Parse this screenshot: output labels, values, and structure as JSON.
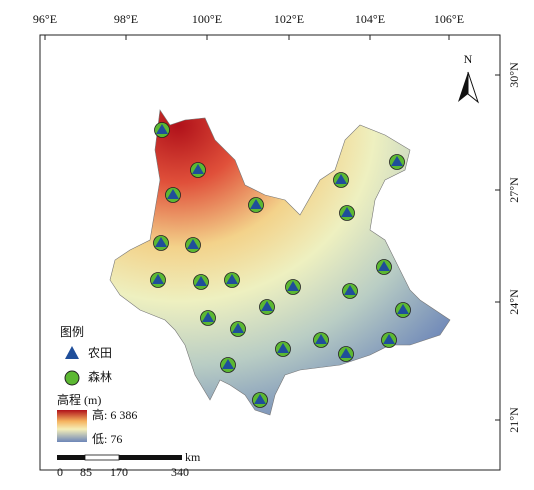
{
  "map": {
    "longitude_labels": [
      "96°E",
      "98°E",
      "100°E",
      "102°E",
      "104°E",
      "106°E"
    ],
    "latitude_labels": [
      "30°N",
      "27°N",
      "24°N",
      "21°N"
    ],
    "north_label": "N",
    "legend": {
      "title": "图例",
      "items": [
        "农田",
        "森林"
      ]
    },
    "elevation": {
      "title": "高程 (m)",
      "high": "高: 6 386",
      "low": "低: 76"
    },
    "scale_bar": {
      "labels": [
        "0",
        "85",
        "170",
        "340"
      ],
      "unit": "km"
    }
  }
}
